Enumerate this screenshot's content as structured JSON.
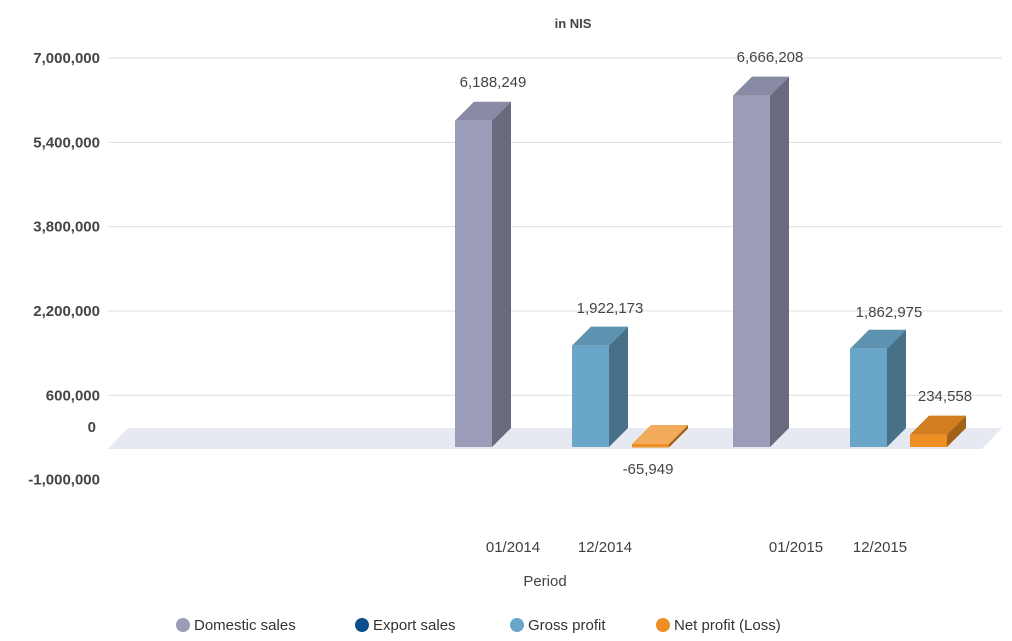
{
  "chart_data": {
    "type": "bar",
    "title": "in NIS",
    "xlabel": "Period",
    "ylabel": "",
    "ylim": [
      -1000000,
      7000000
    ],
    "y_ticks": [
      7000000,
      5400000,
      3800000,
      2200000,
      600000,
      0,
      -1000000
    ],
    "y_tick_labels": [
      "7,000,000",
      "5,400,000",
      "3,800,000",
      "2,200,000",
      "600,000",
      "0",
      "-1,000,000"
    ],
    "grid": true,
    "legend_position": "bottom",
    "categories": [
      "01/2014",
      "12/2014",
      "01/2015",
      "12/2015"
    ],
    "series": [
      {
        "name": "Domestic sales",
        "color": "#9a9cb8",
        "values": [
          6188249,
          null,
          6666208,
          null
        ],
        "labels": [
          "6,188,249",
          null,
          "6,666,208",
          null
        ]
      },
      {
        "name": "Export sales",
        "color": "#0b4f8c",
        "values": [
          null,
          null,
          null,
          null
        ],
        "labels": [
          null,
          null,
          null,
          null
        ]
      },
      {
        "name": "Gross profit",
        "color": "#6aa6c9",
        "values": [
          null,
          1922173,
          null,
          1862975
        ],
        "labels": [
          null,
          "1,922,173",
          null,
          "1,862,975"
        ]
      },
      {
        "name": "Net profit (Loss)",
        "color": "#ee8f24",
        "values": [
          null,
          -65949,
          null,
          234558
        ],
        "labels": [
          null,
          "-65,949",
          null,
          "234,558"
        ]
      }
    ]
  }
}
